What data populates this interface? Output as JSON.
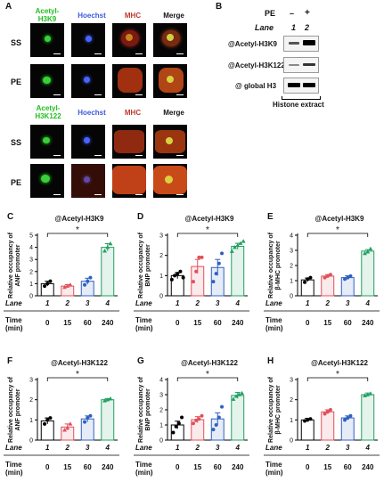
{
  "panel_a": {
    "label": "A",
    "header_top": [
      {
        "text": "Acetyl-\nH3K9",
        "color": "#1fbf1f"
      },
      {
        "text": "Hoechst",
        "color": "#3b5bdb"
      },
      {
        "text": "MHC",
        "color": "#c0392b"
      },
      {
        "text": "Merge",
        "color": "#111111"
      }
    ],
    "header_bottom": [
      {
        "text": "Acetyl-\nH3K122",
        "color": "#1fbf1f"
      },
      {
        "text": "Hoechst",
        "color": "#3b5bdb"
      },
      {
        "text": "MHC",
        "color": "#c0392b"
      },
      {
        "text": "Merge",
        "color": "#111111"
      }
    ],
    "rows": [
      "SS",
      "PE",
      "SS",
      "PE"
    ]
  },
  "panel_b": {
    "label": "B",
    "pe_label": "PE",
    "pe_minus": "–",
    "pe_plus": "+",
    "lane_label": "Lane",
    "lane_1": "1",
    "lane_2": "2",
    "row_1": "@Acetyl-H3K9",
    "row_2": "@Acetyl-H3K122",
    "row_3": "@ global H3",
    "footer": "Histone extract"
  },
  "chart_data": [
    {
      "panel": "C",
      "type": "bar",
      "title": "@Acetyl-H3K9",
      "ylabel": "Relative occupancy of\nANF promoter",
      "ylim": [
        0,
        5
      ],
      "yticks": [
        0,
        1,
        2,
        3,
        4,
        5
      ],
      "categories": [
        "1",
        "2",
        "3",
        "4"
      ],
      "values": [
        1.0,
        0.8,
        1.2,
        4.0
      ],
      "errors": [
        0.2,
        0.12,
        0.25,
        0.3
      ],
      "points": [
        [
          0.8,
          1.0,
          1.2
        ],
        [
          0.7,
          0.8,
          0.9
        ],
        [
          0.9,
          1.2,
          1.5
        ],
        [
          3.7,
          4.0,
          4.3
        ]
      ],
      "colors": [
        "#000000",
        "#e0505a",
        "#3060c0",
        "#20a060"
      ],
      "markers": [
        "circle",
        "triangle",
        "circle",
        "triangle"
      ],
      "lane_label": "Lane",
      "time_label": "Time\n(min)",
      "times": [
        "0",
        "15",
        "60",
        "240"
      ],
      "sig": "*"
    },
    {
      "panel": "D",
      "type": "bar",
      "title": "@Acetyl-H3K9",
      "ylabel": "Relative occupancy of\nBNP promoter",
      "ylim": [
        0,
        3
      ],
      "yticks": [
        0,
        1,
        2,
        3
      ],
      "categories": [
        "1",
        "2",
        "3",
        "4"
      ],
      "values": [
        1.0,
        1.45,
        1.4,
        2.45
      ],
      "errors": [
        0.15,
        0.35,
        0.4,
        0.15
      ],
      "points": [
        [
          0.8,
          1.0,
          1.1,
          1.2,
          0.9
        ],
        [
          0.7,
          1.2,
          1.9,
          1.9
        ],
        [
          0.7,
          1.1,
          1.6,
          2.1
        ],
        [
          2.2,
          2.4,
          2.5,
          2.6,
          2.7
        ]
      ],
      "colors": [
        "#000000",
        "#e0505a",
        "#3060c0",
        "#20a060"
      ],
      "markers": [
        "circle",
        "circle",
        "circle",
        "triangle"
      ],
      "lane_label": "Lane",
      "time_label": "Time\n(min)",
      "times": [
        "0",
        "15",
        "60",
        "240"
      ],
      "sig": "*"
    },
    {
      "panel": "E",
      "type": "bar",
      "title": "@Acetyl-H3K9",
      "ylabel": "Relative occupancy of\nβ-MHC promoter",
      "ylim": [
        0,
        4
      ],
      "yticks": [
        0,
        1,
        2,
        3,
        4
      ],
      "categories": [
        "1",
        "2",
        "3",
        "4"
      ],
      "values": [
        1.05,
        1.3,
        1.2,
        2.95
      ],
      "errors": [
        0.12,
        0.1,
        0.12,
        0.1
      ],
      "points": [
        [
          0.9,
          1.1,
          1.2
        ],
        [
          1.2,
          1.3,
          1.4
        ],
        [
          1.1,
          1.2,
          1.3
        ],
        [
          2.8,
          2.9,
          3.1
        ]
      ],
      "colors": [
        "#000000",
        "#e0505a",
        "#3060c0",
        "#20a060"
      ],
      "markers": [
        "circle",
        "circle",
        "circle",
        "triangle"
      ],
      "lane_label": "Lane",
      "time_label": "Time\n(min)",
      "times": [
        "0",
        "15",
        "60",
        "240"
      ],
      "sig": "*"
    },
    {
      "panel": "F",
      "type": "bar",
      "title": "@Acetyl-H3K122",
      "ylabel": "Relative occupancy of\nANF promoter",
      "ylim": [
        0,
        3
      ],
      "yticks": [
        0,
        1,
        2,
        3
      ],
      "categories": [
        "1",
        "2",
        "3",
        "4"
      ],
      "values": [
        0.95,
        0.65,
        1.05,
        2.0
      ],
      "errors": [
        0.15,
        0.15,
        0.15,
        0.05
      ],
      "points": [
        [
          0.8,
          1.0,
          1.1
        ],
        [
          0.5,
          0.6,
          0.8
        ],
        [
          0.9,
          1.1,
          1.2
        ],
        [
          1.95,
          2.0,
          2.05
        ]
      ],
      "colors": [
        "#000000",
        "#e0505a",
        "#3060c0",
        "#20a060"
      ],
      "markers": [
        "circle",
        "triangle",
        "circle",
        "triangle"
      ],
      "lane_label": "Lane",
      "time_label": "Time\n(min)",
      "times": [
        "0",
        "15",
        "60",
        "240"
      ],
      "sig": "*"
    },
    {
      "panel": "G",
      "type": "bar",
      "title": "@Acetyl-H3K122",
      "ylabel": "Relative occupancy of\nBNP promoter",
      "ylim": [
        0,
        4
      ],
      "yticks": [
        0,
        1,
        2,
        3,
        4
      ],
      "categories": [
        "1",
        "2",
        "3",
        "4"
      ],
      "values": [
        1.0,
        1.35,
        1.4,
        2.95
      ],
      "errors": [
        0.25,
        0.2,
        0.4,
        0.2
      ],
      "points": [
        [
          0.5,
          0.9,
          1.1,
          1.5
        ],
        [
          1.1,
          1.3,
          1.4,
          1.6
        ],
        [
          0.7,
          1.0,
          1.5,
          2.2
        ],
        [
          2.7,
          2.9,
          3.0,
          3.1
        ]
      ],
      "colors": [
        "#000000",
        "#e0505a",
        "#3060c0",
        "#20a060"
      ],
      "markers": [
        "circle",
        "circle",
        "circle",
        "triangle"
      ],
      "lane_label": "Lane",
      "time_label": "Time\n(min)",
      "times": [
        "0",
        "15",
        "60",
        "240"
      ],
      "sig": "*"
    },
    {
      "panel": "H",
      "type": "bar",
      "title": "@Acetyl-H3K122",
      "ylabel": "Relative occupancy of\nβ-MHC promoter",
      "ylim": [
        0,
        3
      ],
      "yticks": [
        0,
        1,
        2,
        3
      ],
      "categories": [
        "1",
        "2",
        "3",
        "4"
      ],
      "values": [
        1.0,
        1.4,
        1.1,
        2.25
      ],
      "errors": [
        0.08,
        0.1,
        0.1,
        0.08
      ],
      "points": [
        [
          0.95,
          1.0,
          1.05
        ],
        [
          1.3,
          1.4,
          1.5
        ],
        [
          1.0,
          1.1,
          1.2
        ],
        [
          2.2,
          2.25,
          2.3
        ]
      ],
      "colors": [
        "#000000",
        "#e0505a",
        "#3060c0",
        "#20a060"
      ],
      "markers": [
        "circle",
        "circle",
        "circle",
        "triangle"
      ],
      "lane_label": "Lane",
      "time_label": "Time\n(min)",
      "times": [
        "0",
        "15",
        "60",
        "240"
      ],
      "sig": "*"
    }
  ]
}
